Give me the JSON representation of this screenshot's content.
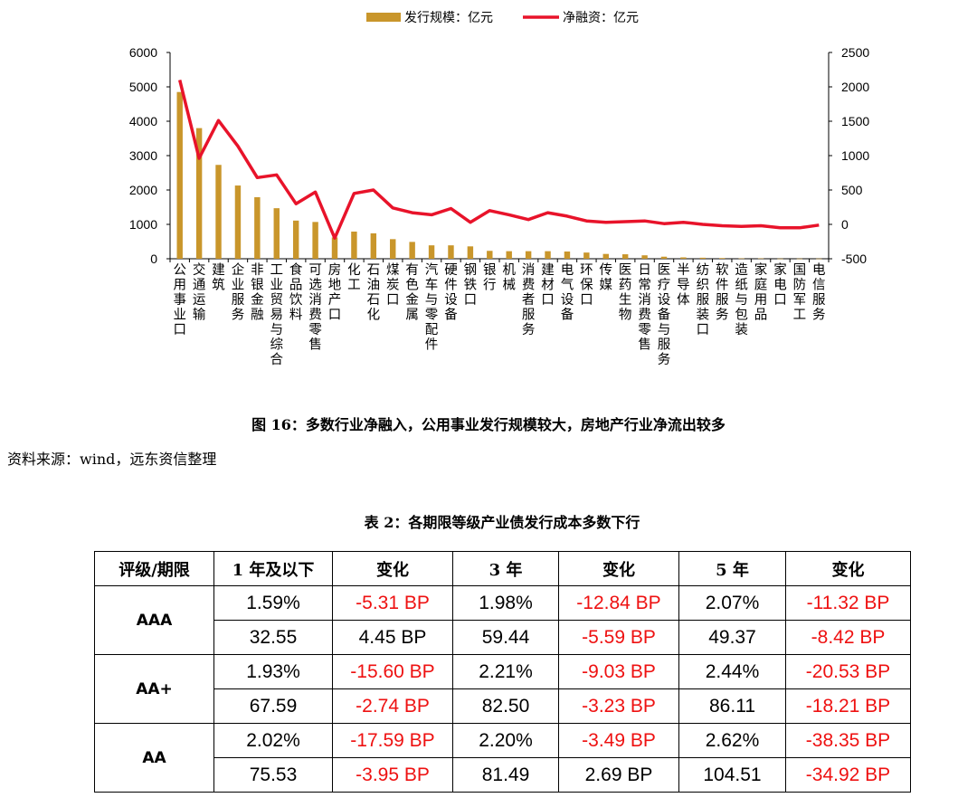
{
  "chart_data": {
    "type": "bar+line",
    "legend": [
      "发行规模：亿元",
      "净融资：亿元"
    ],
    "legend_position": "top",
    "categories": [
      "公用事业口",
      "交通运输",
      "建筑",
      "企业服务",
      "非银金融",
      "工业贸易与综合",
      "食品饮料",
      "可选消费零售",
      "房地产口",
      "化工",
      "石油石化",
      "煤炭口",
      "有色金属",
      "汽车与零配件",
      "硬件设备",
      "钢铁口",
      "银行",
      "机械",
      "消费者服务",
      "建材口",
      "电气设备",
      "环保口",
      "传媒",
      "医药生物",
      "日常消费零售",
      "医疗设备与服务",
      "半导体",
      "纺织服装口",
      "软件服务",
      "造纸与包装",
      "家庭用品",
      "家电口",
      "国防军工",
      "电信服务"
    ],
    "series": [
      {
        "name": "发行规模：亿元",
        "type": "bar",
        "axis": "left",
        "color": "#C9962B",
        "values": [
          4850,
          3800,
          2730,
          2130,
          1790,
          1470,
          1110,
          1070,
          620,
          790,
          740,
          570,
          490,
          390,
          390,
          360,
          230,
          220,
          220,
          220,
          210,
          180,
          140,
          130,
          100,
          60,
          40,
          30,
          20,
          10,
          10,
          5,
          5,
          5
        ]
      },
      {
        "name": "净融资：亿元",
        "type": "line",
        "axis": "right",
        "color": "#E8132A",
        "values": [
          2100,
          960,
          1510,
          1140,
          680,
          720,
          300,
          470,
          -200,
          450,
          500,
          240,
          170,
          140,
          230,
          30,
          200,
          140,
          70,
          170,
          120,
          50,
          30,
          40,
          50,
          10,
          30,
          0,
          -20,
          -30,
          -20,
          -50,
          -50,
          -10
        ]
      }
    ],
    "y_left": {
      "min": 0,
      "max": 6000,
      "ticks": [
        "0",
        "1000",
        "2000",
        "3000",
        "4000",
        "5000",
        "6000"
      ]
    },
    "y_right": {
      "min": -500,
      "max": 2500,
      "ticks": [
        "-500",
        "0",
        "500",
        "1000",
        "1500",
        "2000",
        "2500"
      ]
    },
    "grid": false
  },
  "figure_caption": "图 16：多数行业净融入，公用事业发行规模较大，房地产行业净流出较多",
  "source_note": "资料来源：wind，远东资信整理",
  "table": {
    "caption": "表 2：各期限等级产业债发行成本多数下行",
    "headers": [
      "评级/期限",
      "1 年及以下",
      "变化",
      "3 年",
      "变化",
      "5 年",
      "变化"
    ],
    "rows": [
      {
        "grade": "AAA",
        "r1": [
          "1.59%",
          "-5.31 BP",
          "1.98%",
          "-12.84 BP",
          "2.07%",
          "-11.32 BP"
        ],
        "r2": [
          "32.55",
          "4.45 BP",
          "59.44",
          "-5.59 BP",
          "49.37",
          "-8.42 BP"
        ]
      },
      {
        "grade": "AA+",
        "r1": [
          "1.93%",
          "-15.60 BP",
          "2.21%",
          "-9.03 BP",
          "2.44%",
          "-20.53 BP"
        ],
        "r2": [
          "67.59",
          "-2.74 BP",
          "82.50",
          "-3.23 BP",
          "86.11",
          "-18.21 BP"
        ]
      },
      {
        "grade": "AA",
        "r1": [
          "2.02%",
          "-17.59 BP",
          "2.20%",
          "-3.49 BP",
          "2.62%",
          "-38.35 BP"
        ],
        "r2": [
          "75.53",
          "-3.95 BP",
          "81.49",
          "2.69 BP",
          "104.51",
          "-34.92 BP"
        ]
      }
    ],
    "negative_color": "#ee1111"
  }
}
